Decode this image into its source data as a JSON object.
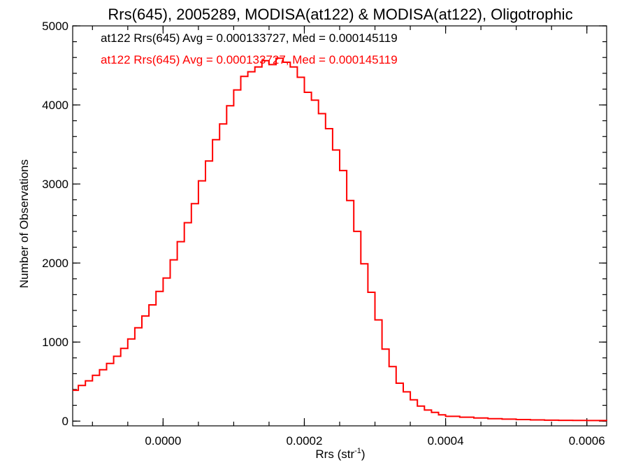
{
  "chart_data": {
    "type": "line",
    "title": "Rrs(645), 2005289, MODISA(at122) & MODISA(at122), Oligotrophic",
    "xlabel_main": "Rrs (str",
    "xlabel_sup": "-1",
    "xlabel_close": ")",
    "ylabel": "Number of Observations",
    "xlim": [
      -0.000128,
      0.000628
    ],
    "ylim": [
      -60,
      5000
    ],
    "x_ticks": [
      0.0,
      0.0002,
      0.0004,
      0.0006
    ],
    "x_tick_labels": [
      "0.0000",
      "0.0002",
      "0.0004",
      "0.0006"
    ],
    "y_ticks": [
      0,
      1000,
      2000,
      3000,
      4000,
      5000
    ],
    "y_tick_labels": [
      "0",
      "1000",
      "2000",
      "3000",
      "4000",
      "5000"
    ],
    "grid": false,
    "style": "step",
    "annotations": [
      {
        "text": "at122 Rrs(645) Avg = 0.000133727, Med = 0.000145119",
        "color": "#000000"
      },
      {
        "text": "at122 Rrs(645) Avg = 0.000133727, Med = 0.000145119",
        "color": "#ff0000"
      }
    ],
    "series": [
      {
        "color": "#ff0000",
        "x": [
          -0.000128,
          -0.00012,
          -0.00011,
          -0.0001,
          -9e-05,
          -8e-05,
          -7e-05,
          -6e-05,
          -5e-05,
          -4e-05,
          -3e-05,
          -2e-05,
          -1e-05,
          0.0,
          1e-05,
          2e-05,
          3e-05,
          4e-05,
          5e-05,
          6e-05,
          7e-05,
          8e-05,
          9e-05,
          0.0001,
          0.00011,
          0.00012,
          0.00013,
          0.00014,
          0.00015,
          0.00016,
          0.00017,
          0.00018,
          0.00019,
          0.0002,
          0.00021,
          0.00022,
          0.00023,
          0.00024,
          0.00025,
          0.00026,
          0.00027,
          0.00028,
          0.00029,
          0.0003,
          0.00031,
          0.00032,
          0.00033,
          0.00034,
          0.00035,
          0.00036,
          0.00037,
          0.00038,
          0.00039,
          0.0004,
          0.00042,
          0.00044,
          0.00046,
          0.00048,
          0.0005,
          0.00052,
          0.00054,
          0.00056,
          0.00058,
          0.0006,
          0.000628
        ],
        "y": [
          390,
          450,
          510,
          580,
          650,
          730,
          820,
          920,
          1040,
          1180,
          1330,
          1470,
          1640,
          1810,
          2040,
          2270,
          2510,
          2750,
          3040,
          3290,
          3560,
          3760,
          3990,
          4190,
          4360,
          4420,
          4480,
          4560,
          4510,
          4590,
          4540,
          4480,
          4350,
          4160,
          4060,
          3890,
          3700,
          3430,
          3170,
          2790,
          2400,
          1990,
          1630,
          1280,
          910,
          690,
          480,
          370,
          270,
          190,
          140,
          110,
          80,
          60,
          50,
          40,
          30,
          25,
          20,
          15,
          12,
          10,
          8,
          7,
          5
        ]
      }
    ]
  }
}
